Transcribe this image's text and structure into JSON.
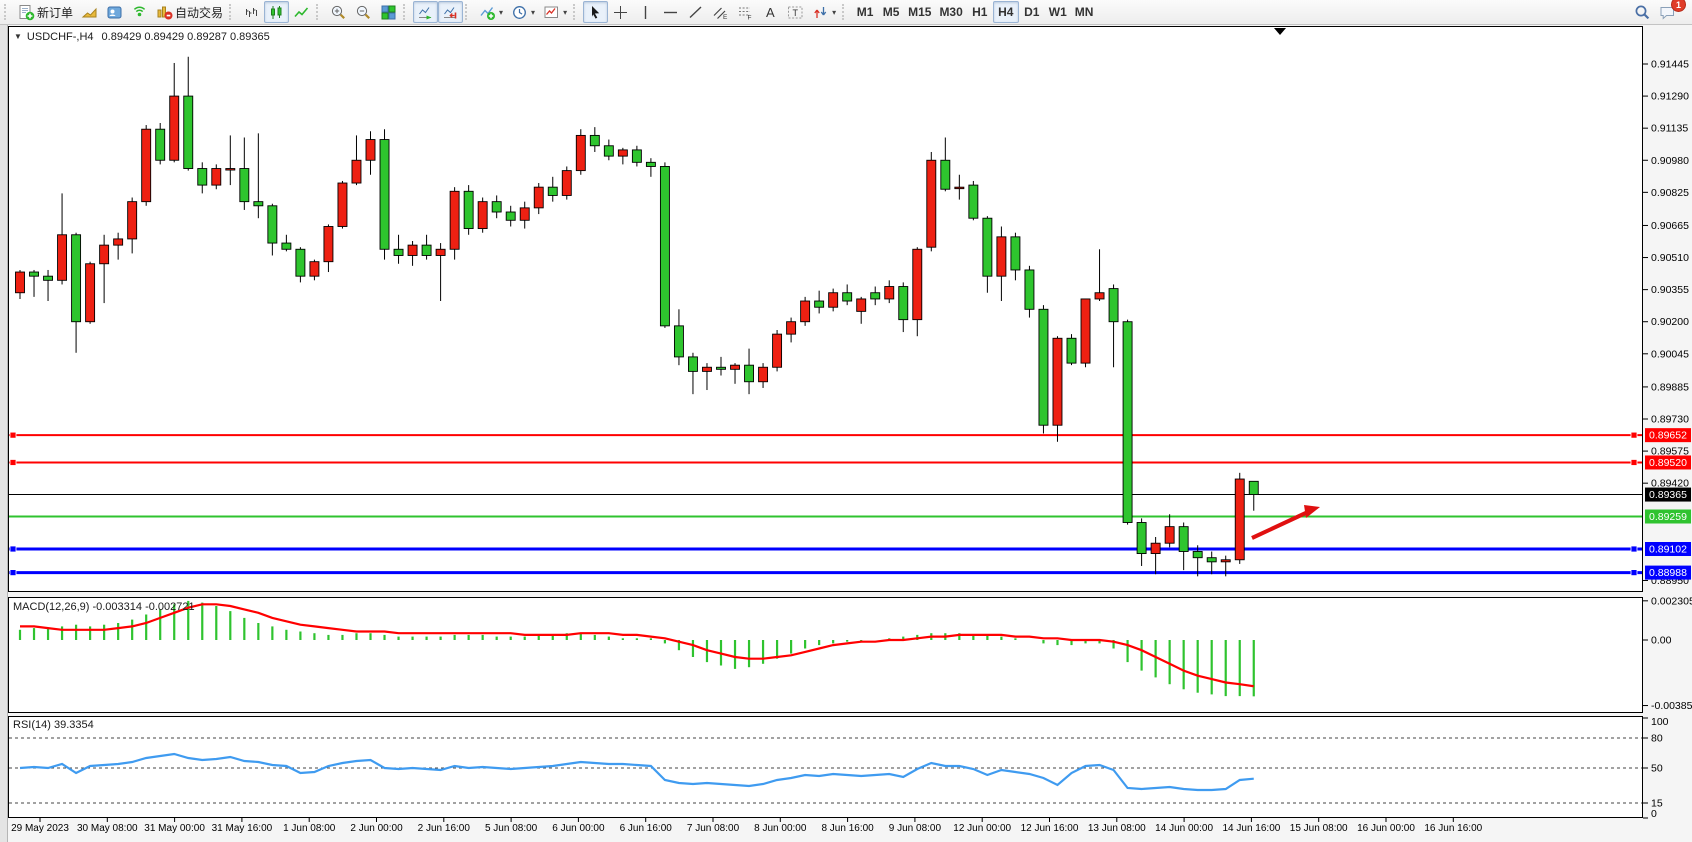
{
  "toolbar": {
    "groups": [
      {
        "buttons": [
          {
            "id": "new-order",
            "label": "新订单"
          },
          {
            "id": "market-watch"
          },
          {
            "id": "navigator"
          },
          {
            "id": "signal"
          },
          {
            "id": "auto-trading",
            "label": "自动交易"
          }
        ]
      },
      {
        "buttons": [
          {
            "id": "bars-chart"
          },
          {
            "id": "candles-chart",
            "active": true
          },
          {
            "id": "line-chart"
          }
        ]
      },
      {
        "buttons": [
          {
            "id": "zoom-in"
          },
          {
            "id": "zoom-out"
          },
          {
            "id": "tile-windows"
          }
        ]
      },
      {
        "buttons": [
          {
            "id": "auto-scroll",
            "active": true
          },
          {
            "id": "chart-shift",
            "active": true
          }
        ]
      },
      {
        "buttons": [
          {
            "id": "indicators",
            "caret": true
          },
          {
            "id": "periods",
            "caret": true
          },
          {
            "id": "templates",
            "caret": true
          }
        ]
      },
      {
        "buttons": [
          {
            "id": "cursor",
            "active": true
          },
          {
            "id": "crosshair"
          },
          {
            "id": "vertical-line"
          },
          {
            "id": "horizontal-line"
          },
          {
            "id": "trendline"
          },
          {
            "id": "equidistant-channel"
          },
          {
            "id": "fibonacci"
          },
          {
            "id": "text"
          },
          {
            "id": "text-label"
          },
          {
            "id": "arrows",
            "caret": true
          }
        ]
      },
      {
        "buttons": [
          {
            "id": "tf-m1",
            "label": "M1"
          },
          {
            "id": "tf-m5",
            "label": "M5"
          },
          {
            "id": "tf-m15",
            "label": "M15"
          },
          {
            "id": "tf-m30",
            "label": "M30"
          },
          {
            "id": "tf-h1",
            "label": "H1"
          },
          {
            "id": "tf-h4",
            "label": "H4",
            "active": true
          },
          {
            "id": "tf-d1",
            "label": "D1"
          },
          {
            "id": "tf-w1",
            "label": "W1"
          },
          {
            "id": "tf-mn",
            "label": "MN"
          }
        ]
      }
    ],
    "right_buttons": [
      {
        "id": "search"
      },
      {
        "id": "chat",
        "badge": "1"
      }
    ],
    "badge": "1"
  },
  "chart_data": [
    {
      "type": "candlestick",
      "title": "USDCHF-,H4",
      "symbol": "USDCHF-",
      "timeframe": "H4",
      "ohlc_text": "0.89429 0.89429 0.89287 0.89365",
      "last_open": 0.89429,
      "last_high": 0.89429,
      "last_low": 0.89287,
      "last_close": 0.89365,
      "bull_color": "#ee2012",
      "bear_color": "#2ec52e",
      "wick_color": "#000000",
      "price_ticks": [
        "0.91445",
        "0.91290",
        "0.91135",
        "0.90980",
        "0.90825",
        "0.90665",
        "0.90510",
        "0.90355",
        "0.90200",
        "0.90045",
        "0.89885",
        "0.89730",
        "0.89575",
        "0.89420",
        "0.88950"
      ],
      "x_labels": [
        "29 May 2023",
        "30 May 08:00",
        "31 May 00:00",
        "31 May 16:00",
        "1 Jun 08:00",
        "2 Jun 00:00",
        "2 Jun 16:00",
        "5 Jun 08:00",
        "6 Jun 00:00",
        "6 Jun 16:00",
        "7 Jun 08:00",
        "8 Jun 00:00",
        "8 Jun 16:00",
        "9 Jun 08:00",
        "12 Jun 00:00",
        "12 Jun 16:00",
        "13 Jun 08:00",
        "14 Jun 00:00",
        "14 Jun 16:00",
        "15 Jun 08:00",
        "16 Jun 00:00",
        "16 Jun 16:00"
      ],
      "hlines": [
        {
          "price": 0.89652,
          "label": "0.89652",
          "color": "#ff0000",
          "width": 2,
          "handles": true
        },
        {
          "price": 0.8952,
          "label": "0.89520",
          "color": "#ff0000",
          "width": 2,
          "handles": true
        },
        {
          "price": 0.89365,
          "label": "0.89365",
          "color": "#000000",
          "width": 1,
          "handles": false,
          "is_bid": true
        },
        {
          "price": 0.89259,
          "label": "0.89259",
          "color": "#2fc32f",
          "width": 2,
          "handles": false
        },
        {
          "price": 0.89102,
          "label": "0.89102",
          "color": "#0000ff",
          "width": 3,
          "handles": true
        },
        {
          "price": 0.88988,
          "label": "0.88988",
          "color": "#0000ff",
          "width": 3,
          "handles": true
        }
      ],
      "annotation": {
        "type": "arrow-right-up",
        "color": "#e01010"
      },
      "candles": [
        [
          0.9034,
          0.9045,
          0.9031,
          0.9044
        ],
        [
          0.9044,
          0.9045,
          0.9032,
          0.9042
        ],
        [
          0.9042,
          0.9045,
          0.903,
          0.904
        ],
        [
          0.904,
          0.9082,
          0.9038,
          0.9062
        ],
        [
          0.9062,
          0.9063,
          0.9005,
          0.902
        ],
        [
          0.902,
          0.9049,
          0.9019,
          0.9048
        ],
        [
          0.9048,
          0.9062,
          0.9029,
          0.9057
        ],
        [
          0.9057,
          0.9063,
          0.905,
          0.906
        ],
        [
          0.906,
          0.908,
          0.9053,
          0.9078
        ],
        [
          0.9078,
          0.9115,
          0.9076,
          0.9113
        ],
        [
          0.9113,
          0.9116,
          0.9096,
          0.9098
        ],
        [
          0.9098,
          0.9145,
          0.9097,
          0.9129
        ],
        [
          0.9129,
          0.9148,
          0.9093,
          0.9094
        ],
        [
          0.9094,
          0.9097,
          0.9082,
          0.9086
        ],
        [
          0.9086,
          0.9096,
          0.9084,
          0.9094
        ],
        [
          0.9094,
          0.911,
          0.9086,
          0.9094
        ],
        [
          0.9094,
          0.9109,
          0.9074,
          0.9078
        ],
        [
          0.9078,
          0.9111,
          0.907,
          0.9076
        ],
        [
          0.9076,
          0.9077,
          0.9052,
          0.9058
        ],
        [
          0.9058,
          0.9062,
          0.9054,
          0.9055
        ],
        [
          0.9055,
          0.9056,
          0.9039,
          0.9042
        ],
        [
          0.9042,
          0.905,
          0.904,
          0.9049
        ],
        [
          0.9049,
          0.9067,
          0.9044,
          0.9066
        ],
        [
          0.9066,
          0.9088,
          0.9065,
          0.9087
        ],
        [
          0.9087,
          0.911,
          0.9086,
          0.9098
        ],
        [
          0.9098,
          0.9112,
          0.9091,
          0.9108
        ],
        [
          0.9108,
          0.9113,
          0.905,
          0.9055
        ],
        [
          0.9055,
          0.9062,
          0.9048,
          0.9052
        ],
        [
          0.9052,
          0.9059,
          0.9047,
          0.9057
        ],
        [
          0.9057,
          0.9062,
          0.905,
          0.9052
        ],
        [
          0.9052,
          0.9058,
          0.903,
          0.9055
        ],
        [
          0.9055,
          0.9085,
          0.905,
          0.9083
        ],
        [
          0.9083,
          0.9086,
          0.9062,
          0.9065
        ],
        [
          0.9065,
          0.908,
          0.9063,
          0.9078
        ],
        [
          0.9078,
          0.9081,
          0.907,
          0.9073
        ],
        [
          0.9073,
          0.9076,
          0.9066,
          0.9069
        ],
        [
          0.9069,
          0.9078,
          0.9065,
          0.9075
        ],
        [
          0.9075,
          0.9087,
          0.9072,
          0.9085
        ],
        [
          0.9085,
          0.909,
          0.9078,
          0.9081
        ],
        [
          0.9081,
          0.9095,
          0.9079,
          0.9093
        ],
        [
          0.9093,
          0.9113,
          0.9091,
          0.911
        ],
        [
          0.911,
          0.9114,
          0.9102,
          0.9105
        ],
        [
          0.9105,
          0.9108,
          0.9098,
          0.91
        ],
        [
          0.91,
          0.9104,
          0.9096,
          0.9103
        ],
        [
          0.9103,
          0.9105,
          0.9095,
          0.9097
        ],
        [
          0.9097,
          0.9099,
          0.909,
          0.9095
        ],
        [
          0.9095,
          0.9097,
          0.9017,
          0.9018
        ],
        [
          0.9018,
          0.9026,
          0.8999,
          0.9003
        ],
        [
          0.9003,
          0.9005,
          0.8985,
          0.8996
        ],
        [
          0.8996,
          0.9,
          0.8987,
          0.8998
        ],
        [
          0.8998,
          0.9003,
          0.8994,
          0.8997
        ],
        [
          0.8997,
          0.9,
          0.899,
          0.8999
        ],
        [
          0.8999,
          0.9007,
          0.8985,
          0.8991
        ],
        [
          0.8991,
          0.9,
          0.8988,
          0.8998
        ],
        [
          0.8998,
          0.9016,
          0.8996,
          0.9014
        ],
        [
          0.9014,
          0.9022,
          0.901,
          0.902
        ],
        [
          0.902,
          0.9032,
          0.9018,
          0.903
        ],
        [
          0.903,
          0.9035,
          0.9024,
          0.9027
        ],
        [
          0.9027,
          0.9036,
          0.9025,
          0.9034
        ],
        [
          0.9034,
          0.9038,
          0.9028,
          0.903
        ],
        [
          0.9025,
          0.9032,
          0.9019,
          0.9031
        ],
        [
          0.9034,
          0.9037,
          0.9028,
          0.9031
        ],
        [
          0.9031,
          0.904,
          0.9029,
          0.9037
        ],
        [
          0.9037,
          0.9039,
          0.9015,
          0.9021
        ],
        [
          0.9021,
          0.9056,
          0.9013,
          0.9055
        ],
        [
          0.9056,
          0.9102,
          0.9054,
          0.9098
        ],
        [
          0.9098,
          0.9109,
          0.9083,
          0.9084
        ],
        [
          0.9085,
          0.9091,
          0.9079,
          0.9085
        ],
        [
          0.9086,
          0.9088,
          0.9069,
          0.907
        ],
        [
          0.907,
          0.9071,
          0.9034,
          0.9042
        ],
        [
          0.9042,
          0.9066,
          0.903,
          0.9061
        ],
        [
          0.9061,
          0.9063,
          0.904,
          0.9045
        ],
        [
          0.9045,
          0.9047,
          0.9022,
          0.9026
        ],
        [
          0.9026,
          0.9028,
          0.8966,
          0.897
        ],
        [
          0.897,
          0.9013,
          0.8962,
          0.9012
        ],
        [
          0.9012,
          0.9014,
          0.8999,
          0.9
        ],
        [
          0.9,
          0.9031,
          0.8998,
          0.9031
        ],
        [
          0.9031,
          0.9055,
          0.903,
          0.9034
        ],
        [
          0.9036,
          0.9038,
          0.8998,
          0.902
        ],
        [
          0.902,
          0.9021,
          0.8922,
          0.8923
        ],
        [
          0.8923,
          0.8925,
          0.8902,
          0.8908
        ],
        [
          0.8908,
          0.8916,
          0.8898,
          0.8913
        ],
        [
          0.8913,
          0.8927,
          0.8911,
          0.8921
        ],
        [
          0.8921,
          0.8923,
          0.89,
          0.8909
        ],
        [
          0.8909,
          0.8912,
          0.8897,
          0.8906
        ],
        [
          0.8906,
          0.8909,
          0.8898,
          0.8904
        ],
        [
          0.8904,
          0.8907,
          0.8897,
          0.8905
        ],
        [
          0.8905,
          0.8947,
          0.8903,
          0.8944
        ],
        [
          0.89429,
          0.89429,
          0.89287,
          0.89365
        ]
      ]
    },
    {
      "type": "bar",
      "name": "MACD",
      "label": "MACD(12,26,9) -0.003314 -0.002721",
      "params": "12,26,9",
      "main_value": -0.003314,
      "signal_value": -0.002721,
      "hist_color": "#2fc32f",
      "signal_color": "#ff0000",
      "axis_ticks": [
        "0.002305",
        "0.00",
        "-0.003855"
      ],
      "hist": [
        0.0006,
        0.0007,
        0.0007,
        0.0008,
        0.0009,
        0.0008,
        0.0009,
        0.001,
        0.0012,
        0.0015,
        0.0018,
        0.0021,
        0.0023,
        0.0022,
        0.002,
        0.0017,
        0.0013,
        0.001,
        0.0008,
        0.0006,
        0.0005,
        0.0004,
        0.0003,
        0.0003,
        0.0004,
        0.0004,
        0.0003,
        0.0002,
        0.0002,
        0.0002,
        0.0002,
        0.0003,
        0.0003,
        0.0003,
        0.0002,
        0.0002,
        0.0002,
        0.0003,
        0.0003,
        0.0004,
        0.0004,
        0.0003,
        0.0002,
        0.0001,
        0.0001,
        0.0001,
        -0.0002,
        -0.0006,
        -0.001,
        -0.0013,
        -0.0015,
        -0.0017,
        -0.0016,
        -0.0014,
        -0.0011,
        -0.0008,
        -0.0005,
        -0.0003,
        -0.0002,
        -0.0001,
        -0.0001,
        0.0,
        0.0001,
        0.0002,
        0.0003,
        0.0004,
        0.0004,
        0.0004,
        0.0003,
        0.0003,
        0.0002,
        0.0001,
        0.0,
        -0.0002,
        -0.0003,
        -0.0003,
        -0.0002,
        -0.0002,
        -0.0005,
        -0.0013,
        -0.0018,
        -0.0022,
        -0.0026,
        -0.0029,
        -0.0031,
        -0.0032,
        -0.0033,
        -0.0033,
        -0.003314
      ],
      "signal": [
        0.0008,
        0.0008,
        0.0007,
        0.0006,
        0.0006,
        0.0006,
        0.0006,
        0.0007,
        0.0008,
        0.001,
        0.0013,
        0.0016,
        0.0019,
        0.0021,
        0.0021,
        0.002,
        0.0018,
        0.0016,
        0.0013,
        0.0011,
        0.0009,
        0.0008,
        0.0007,
        0.0006,
        0.0005,
        0.0005,
        0.0005,
        0.0004,
        0.0004,
        0.0004,
        0.0004,
        0.0004,
        0.0004,
        0.0004,
        0.0004,
        0.0004,
        0.0003,
        0.0003,
        0.0003,
        0.0003,
        0.0004,
        0.0004,
        0.0004,
        0.0003,
        0.0003,
        0.0002,
        0.0001,
        -0.0001,
        -0.0003,
        -0.0006,
        -0.0008,
        -0.001,
        -0.0011,
        -0.0011,
        -0.001,
        -0.0009,
        -0.0007,
        -0.0005,
        -0.0003,
        -0.0002,
        -0.0001,
        -0.0001,
        0.0,
        0.0,
        0.0001,
        0.0002,
        0.0002,
        0.0003,
        0.0003,
        0.0003,
        0.0003,
        0.0002,
        0.0002,
        0.0001,
        0.0001,
        0.0,
        0.0,
        0.0,
        -0.0001,
        -0.0003,
        -0.0006,
        -0.001,
        -0.0014,
        -0.0018,
        -0.0021,
        -0.0023,
        -0.0025,
        -0.0026,
        -0.002721
      ]
    },
    {
      "type": "line",
      "name": "RSI",
      "label": "RSI(14) 39.3354",
      "period": 14,
      "value": 39.3354,
      "line_color": "#3f9bf0",
      "levels": [
        80,
        50,
        15
      ],
      "axis_ticks": [
        "100",
        "80",
        "50",
        "15",
        "0"
      ],
      "values": [
        50,
        51,
        50,
        54,
        45,
        52,
        53,
        54,
        56,
        60,
        62,
        64,
        60,
        58,
        59,
        61,
        57,
        56,
        53,
        52,
        45,
        46,
        52,
        55,
        57,
        58,
        50,
        49,
        50,
        49,
        48,
        52,
        50,
        51,
        50,
        49,
        50,
        51,
        52,
        54,
        56,
        55,
        54,
        54,
        53,
        52,
        38,
        35,
        34,
        35,
        34,
        33,
        32,
        34,
        38,
        40,
        43,
        42,
        44,
        43,
        42,
        43,
        44,
        41,
        49,
        55,
        52,
        52,
        49,
        43,
        48,
        46,
        44,
        40,
        33,
        45,
        52,
        53,
        48,
        30,
        29,
        30,
        31,
        29,
        28,
        28,
        29,
        38,
        39.3354
      ]
    }
  ]
}
